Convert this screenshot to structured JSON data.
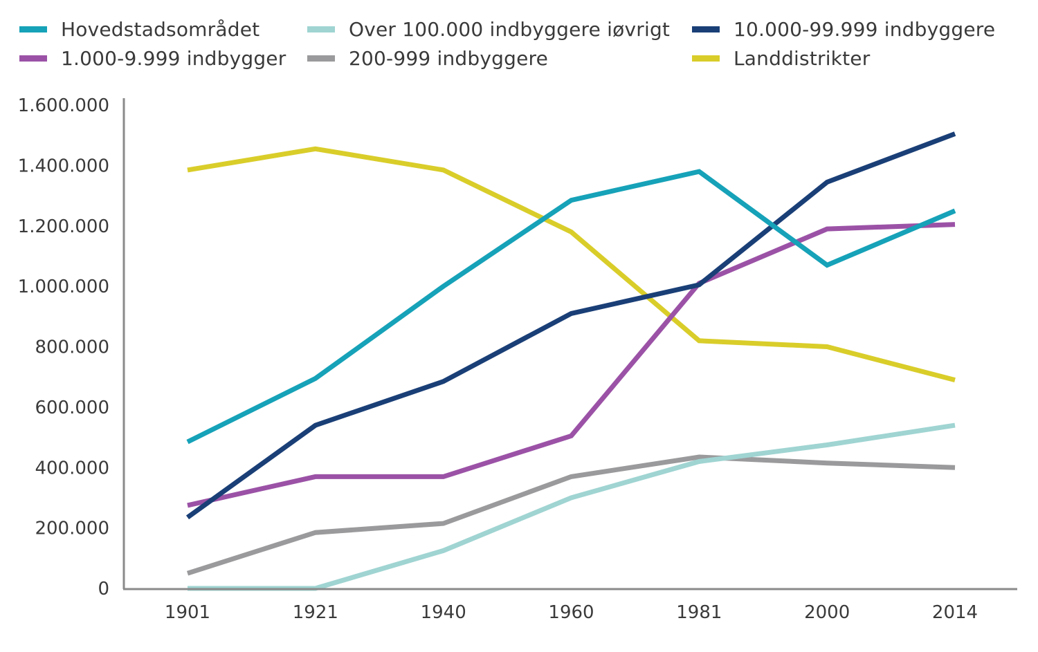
{
  "chart_data": {
    "type": "line",
    "title": "",
    "xlabel": "",
    "ylabel": "",
    "categories": [
      "1901",
      "1921",
      "1940",
      "1960",
      "1981",
      "2000",
      "2014"
    ],
    "y_ticks": [
      "0",
      "200.000",
      "400.000",
      "600.000",
      "800.000",
      "1.000.000",
      "1.200.000",
      "1.400.000",
      "1.600.000"
    ],
    "ylim": [
      0,
      1600000
    ],
    "grid": false,
    "legend_position": "top",
    "series": [
      {
        "name": "Hovedstadsområdet",
        "color": "#16a2b8",
        "values": [
          485000,
          695000,
          1000000,
          1285000,
          1380000,
          1070000,
          1250000
        ]
      },
      {
        "name": "Over 100.000 indbyggere iøvrigt",
        "color": "#9fd4d2",
        "values": [
          0,
          0,
          125000,
          300000,
          420000,
          475000,
          540000
        ]
      },
      {
        "name": "10.000-99.999 indbyggere",
        "color": "#1a3f77",
        "values": [
          235000,
          540000,
          685000,
          910000,
          1005000,
          1345000,
          1505000
        ]
      },
      {
        "name": "1.000-9.999 indbygger",
        "color": "#9b52a6",
        "values": [
          275000,
          370000,
          370000,
          505000,
          1010000,
          1190000,
          1205000
        ]
      },
      {
        "name": "200-999 indbyggere",
        "color": "#9a9a9c",
        "values": [
          50000,
          185000,
          215000,
          370000,
          435000,
          415000,
          400000
        ]
      },
      {
        "name": "Landdistrikter",
        "color": "#d9cd2a",
        "values": [
          1385000,
          1455000,
          1385000,
          1180000,
          820000,
          800000,
          690000
        ]
      }
    ]
  }
}
